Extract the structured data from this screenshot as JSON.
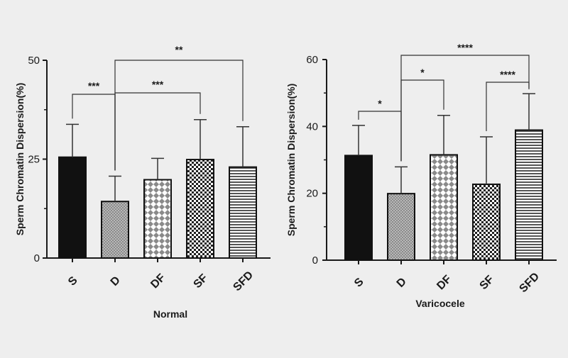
{
  "chart_data": [
    {
      "type": "bar",
      "xlabel": "Normal",
      "ylabel": "Sperm Chromatin Dispersion(%)",
      "ylim": [
        0,
        50
      ],
      "yticks": [
        0,
        25,
        50
      ],
      "categories": [
        "S",
        "D",
        "DF",
        "SF",
        "SFD"
      ],
      "values": [
        25.5,
        14.3,
        19.8,
        24.9,
        23.0
      ],
      "errors": [
        8.3,
        6.4,
        5.4,
        10.1,
        10.2
      ],
      "patterns": [
        "solid",
        "dots",
        "diamond",
        "checker",
        "hlines"
      ],
      "significance": [
        {
          "from": 0,
          "to": 1,
          "label": "***"
        },
        {
          "from": 1,
          "to": 3,
          "label": "***"
        },
        {
          "from": 1,
          "to": 4,
          "label": "**"
        }
      ]
    },
    {
      "type": "bar",
      "xlabel": "Varicocele",
      "ylabel": "Sperm Chromatin Dispersion(%)",
      "ylim": [
        0,
        60
      ],
      "yticks": [
        0,
        20,
        40,
        60
      ],
      "categories": [
        "S",
        "D",
        "DF",
        "SF",
        "SFD"
      ],
      "values": [
        31.3,
        19.9,
        31.5,
        22.7,
        38.9
      ],
      "errors": [
        9.0,
        8.0,
        11.8,
        14.2,
        10.9
      ],
      "patterns": [
        "solid",
        "dots",
        "diamond",
        "checker",
        "hlines"
      ],
      "significance": [
        {
          "from": 0,
          "to": 1,
          "label": "*"
        },
        {
          "from": 1,
          "to": 2,
          "label": "*"
        },
        {
          "from": 1,
          "to": 4,
          "label": "****"
        },
        {
          "from": 3,
          "to": 4,
          "label": "****"
        }
      ]
    }
  ]
}
